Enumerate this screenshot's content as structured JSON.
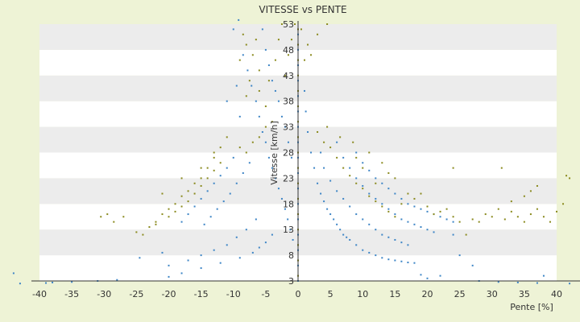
{
  "chart_data": {
    "type": "scatter",
    "title": "VITESSE vs PENTE",
    "xlabel": "Pente [%]",
    "ylabel": "Vitesse [km/h]",
    "xlim": [
      -40,
      42
    ],
    "ylim": [
      3,
      53
    ],
    "x_ticks": [
      -40,
      -35,
      -30,
      -25,
      -20,
      -15,
      -10,
      -5,
      0,
      5,
      10,
      15,
      20,
      25,
      30,
      35,
      40
    ],
    "y_ticks": [
      3,
      8,
      13,
      18,
      23,
      28,
      33,
      38,
      43,
      48,
      53
    ],
    "grid": "horizontal alternating bands",
    "legend": "none",
    "colors": {
      "background": "#eef3d6",
      "band_dark": "#ececec",
      "band_light": "#ffffff",
      "series_blue": "#3d85c6",
      "series_olive": "#8a8a1e",
      "axis": "#333333",
      "tick_text": "#333333",
      "title_text": "#333333"
    },
    "series": [
      {
        "color": "blue",
        "points": [
          [
            -10,
            52
          ],
          [
            -9.2,
            53.8
          ],
          [
            -8.5,
            47
          ],
          [
            -7.8,
            44
          ],
          [
            -7.2,
            41
          ],
          [
            -6.5,
            38
          ],
          [
            -6,
            35
          ],
          [
            -5.5,
            32
          ],
          [
            -5,
            30
          ],
          [
            -4.5,
            27
          ],
          [
            -4,
            25
          ],
          [
            -3.5,
            23
          ],
          [
            -3,
            21
          ],
          [
            -2.5,
            19
          ],
          [
            -2,
            17
          ],
          [
            -1.6,
            15
          ],
          [
            -1.2,
            13
          ],
          [
            -0.8,
            11
          ],
          [
            -5.5,
            52
          ],
          [
            -5,
            48
          ],
          [
            -4.5,
            45
          ],
          [
            -4,
            42
          ],
          [
            -3.5,
            40
          ],
          [
            -3,
            38
          ],
          [
            -2.5,
            35
          ],
          [
            -2,
            33
          ],
          [
            -1.5,
            30
          ],
          [
            -1,
            27
          ],
          [
            -7.5,
            26
          ],
          [
            -8.5,
            24
          ],
          [
            -9.5,
            22
          ],
          [
            -10.5,
            20
          ],
          [
            -11.5,
            18.5
          ],
          [
            -12.5,
            17
          ],
          [
            -13.5,
            15.5
          ],
          [
            -14.5,
            14
          ],
          [
            -10,
            27
          ],
          [
            -11,
            25
          ],
          [
            -12,
            23.5
          ],
          [
            -13,
            22
          ],
          [
            -14,
            20.5
          ],
          [
            -15,
            19
          ],
          [
            -16,
            17.5
          ],
          [
            -17,
            16
          ],
          [
            -18,
            14.5
          ],
          [
            -6.5,
            15
          ],
          [
            -8,
            13
          ],
          [
            -9.5,
            11.5
          ],
          [
            -11,
            10
          ],
          [
            -13,
            9
          ],
          [
            -15,
            8
          ],
          [
            -17,
            7
          ],
          [
            -20,
            6
          ],
          [
            -4,
            12
          ],
          [
            -5,
            10.5
          ],
          [
            -6,
            9.5
          ],
          [
            -7,
            8.5
          ],
          [
            -9,
            7.5
          ],
          [
            -12,
            6.5
          ],
          [
            -15,
            5.5
          ],
          [
            -18,
            4.5
          ],
          [
            -20,
            3.8
          ],
          [
            -24.5,
            7.5
          ],
          [
            -21,
            8.5
          ],
          [
            -28,
            3.2
          ],
          [
            -31,
            3
          ],
          [
            -35,
            2.8
          ],
          [
            -38,
            2.7
          ],
          [
            -39,
            2.6
          ],
          [
            -43,
            2.5
          ],
          [
            -44,
            4.5
          ],
          [
            -9,
            35
          ],
          [
            -11,
            38
          ],
          [
            -9.5,
            41
          ],
          [
            0,
            3
          ],
          [
            0,
            6
          ],
          [
            0,
            9
          ],
          [
            0,
            12
          ],
          [
            0,
            15
          ],
          [
            0,
            18
          ],
          [
            0,
            21
          ],
          [
            0,
            24
          ],
          [
            0,
            27
          ],
          [
            0,
            30
          ],
          [
            0,
            33
          ],
          [
            0,
            36
          ],
          [
            0,
            39
          ],
          [
            0,
            42
          ],
          [
            0,
            45
          ],
          [
            0,
            48
          ],
          [
            0,
            51
          ],
          [
            1,
            40
          ],
          [
            1.2,
            36
          ],
          [
            1.5,
            32
          ],
          [
            2,
            28
          ],
          [
            2.5,
            25
          ],
          [
            3,
            22
          ],
          [
            3.5,
            20
          ],
          [
            4,
            18.5
          ],
          [
            4.5,
            17
          ],
          [
            5,
            16
          ],
          [
            5.5,
            15
          ],
          [
            6,
            14
          ],
          [
            6.5,
            13
          ],
          [
            7,
            12
          ],
          [
            7.5,
            11.5
          ],
          [
            8,
            11
          ],
          [
            9,
            10
          ],
          [
            10,
            9
          ],
          [
            11,
            8.5
          ],
          [
            12,
            8
          ],
          [
            13,
            7.5
          ],
          [
            14,
            7.2
          ],
          [
            15,
            7
          ],
          [
            16,
            6.8
          ],
          [
            17,
            6.6
          ],
          [
            18,
            6.5
          ],
          [
            3.5,
            28
          ],
          [
            4,
            25
          ],
          [
            5,
            22.5
          ],
          [
            6,
            20.5
          ],
          [
            7,
            19
          ],
          [
            8,
            17.5
          ],
          [
            9,
            16
          ],
          [
            10,
            15
          ],
          [
            11,
            14
          ],
          [
            12,
            13
          ],
          [
            13,
            12
          ],
          [
            14,
            11.5
          ],
          [
            15,
            11
          ],
          [
            16,
            10.5
          ],
          [
            17,
            10
          ],
          [
            6,
            30
          ],
          [
            7,
            27
          ],
          [
            8,
            25
          ],
          [
            9,
            23
          ],
          [
            10,
            21.5
          ],
          [
            11,
            20
          ],
          [
            12,
            19
          ],
          [
            13,
            18
          ],
          [
            14,
            17
          ],
          [
            15,
            16
          ],
          [
            16,
            15
          ],
          [
            17,
            14.5
          ],
          [
            18,
            14
          ],
          [
            19,
            13.5
          ],
          [
            20,
            13
          ],
          [
            21,
            12.5
          ],
          [
            9,
            28
          ],
          [
            10,
            26
          ],
          [
            11,
            24.5
          ],
          [
            12,
            23
          ],
          [
            13,
            22
          ],
          [
            14,
            21
          ],
          [
            15,
            20
          ],
          [
            16,
            19
          ],
          [
            17,
            18
          ],
          [
            18,
            17.5
          ],
          [
            19,
            17
          ],
          [
            20,
            16.5
          ],
          [
            21,
            16
          ],
          [
            22,
            15.5
          ],
          [
            23,
            15
          ],
          [
            24,
            14.5
          ],
          [
            25,
            8
          ],
          [
            24,
            12
          ],
          [
            27,
            6
          ],
          [
            28,
            3
          ],
          [
            31,
            2.8
          ],
          [
            34,
            2.7
          ],
          [
            37,
            2.6
          ],
          [
            38,
            4
          ],
          [
            42,
            2.5
          ],
          [
            22,
            4
          ],
          [
            20,
            3.5
          ],
          [
            19,
            4.2
          ]
        ]
      },
      {
        "color": "olive",
        "points": [
          [
            -9,
            46
          ],
          [
            -8.5,
            51
          ],
          [
            -8,
            49
          ],
          [
            -7,
            47
          ],
          [
            -6.5,
            50
          ],
          [
            -6,
            44
          ],
          [
            -7.5,
            42
          ],
          [
            -8,
            39
          ],
          [
            -6,
            40
          ],
          [
            -5,
            37
          ],
          [
            -4.5,
            42
          ],
          [
            -3.5,
            46
          ],
          [
            -3,
            50
          ],
          [
            -2.5,
            53
          ],
          [
            -2,
            43
          ],
          [
            -1.5,
            47
          ],
          [
            -1,
            50
          ],
          [
            -0.5,
            53
          ],
          [
            -4,
            34
          ],
          [
            -5,
            33
          ],
          [
            -6,
            31
          ],
          [
            -7,
            30
          ],
          [
            -8,
            28
          ],
          [
            -9,
            29
          ],
          [
            -11,
            31
          ],
          [
            -12,
            29
          ],
          [
            -13,
            27
          ],
          [
            -14,
            25
          ],
          [
            -15,
            23
          ],
          [
            -16,
            22
          ],
          [
            -17,
            20.5
          ],
          [
            -18,
            19.5
          ],
          [
            -19,
            18
          ],
          [
            -20,
            17
          ],
          [
            -21,
            16
          ],
          [
            -22,
            14.5
          ],
          [
            -23,
            13.5
          ],
          [
            -24,
            12
          ],
          [
            -12,
            26
          ],
          [
            -13,
            24.5
          ],
          [
            -14,
            23
          ],
          [
            -15,
            21.5
          ],
          [
            -16,
            20
          ],
          [
            -17,
            18.5
          ],
          [
            -18,
            17.5
          ],
          [
            -19,
            16.5
          ],
          [
            -20,
            15.5
          ],
          [
            -22,
            14
          ],
          [
            -25,
            12.5
          ],
          [
            -27,
            15.5
          ],
          [
            -28.5,
            14.5
          ],
          [
            -29.5,
            16
          ],
          [
            -30.5,
            15.5
          ],
          [
            -21,
            20
          ],
          [
            -18,
            23
          ],
          [
            -15,
            25
          ],
          [
            -13,
            28
          ],
          [
            0,
            4
          ],
          [
            0,
            7
          ],
          [
            0,
            10
          ],
          [
            0,
            13
          ],
          [
            0,
            16
          ],
          [
            0,
            19
          ],
          [
            0,
            22
          ],
          [
            0,
            25
          ],
          [
            0,
            28
          ],
          [
            0,
            31
          ],
          [
            0,
            34
          ],
          [
            0,
            37
          ],
          [
            0,
            40
          ],
          [
            0,
            43
          ],
          [
            0,
            46
          ],
          [
            0,
            49
          ],
          [
            0,
            52
          ],
          [
            1,
            46
          ],
          [
            1.5,
            49
          ],
          [
            2,
            47
          ],
          [
            3,
            51
          ],
          [
            4.5,
            53
          ],
          [
            0.5,
            52
          ],
          [
            3,
            32
          ],
          [
            4,
            30
          ],
          [
            4.5,
            33
          ],
          [
            5,
            29
          ],
          [
            6,
            27
          ],
          [
            6.5,
            31
          ],
          [
            7,
            25
          ],
          [
            8,
            23.5
          ],
          [
            8.5,
            30
          ],
          [
            9,
            22
          ],
          [
            10,
            21
          ],
          [
            11,
            19.5
          ],
          [
            12,
            18.5
          ],
          [
            13,
            17.5
          ],
          [
            14,
            16.5
          ],
          [
            15,
            15.5
          ],
          [
            9,
            27
          ],
          [
            10,
            25
          ],
          [
            11,
            28
          ],
          [
            12,
            22
          ],
          [
            13,
            26
          ],
          [
            14,
            24
          ],
          [
            15,
            23
          ],
          [
            16,
            18
          ],
          [
            17,
            20
          ],
          [
            18,
            19
          ],
          [
            19,
            20
          ],
          [
            20,
            17.5
          ],
          [
            21,
            16
          ],
          [
            22,
            16.5
          ],
          [
            23,
            17
          ],
          [
            24,
            15.5
          ],
          [
            25,
            14.5
          ],
          [
            26,
            12
          ],
          [
            27,
            15
          ],
          [
            28,
            14.5
          ],
          [
            29,
            16
          ],
          [
            30,
            15.5
          ],
          [
            31,
            17
          ],
          [
            32,
            15
          ],
          [
            33,
            16.5
          ],
          [
            34,
            15.5
          ],
          [
            35,
            14.5
          ],
          [
            36,
            16
          ],
          [
            37,
            17
          ],
          [
            38,
            15.5
          ],
          [
            39,
            14.5
          ],
          [
            40,
            16.5
          ],
          [
            41,
            18
          ],
          [
            33,
            18.5
          ],
          [
            35,
            19.5
          ],
          [
            36,
            20.5
          ],
          [
            37,
            21.5
          ],
          [
            42,
            23
          ],
          [
            41.5,
            23.5
          ],
          [
            31.5,
            25
          ],
          [
            24,
            25
          ]
        ]
      }
    ]
  }
}
